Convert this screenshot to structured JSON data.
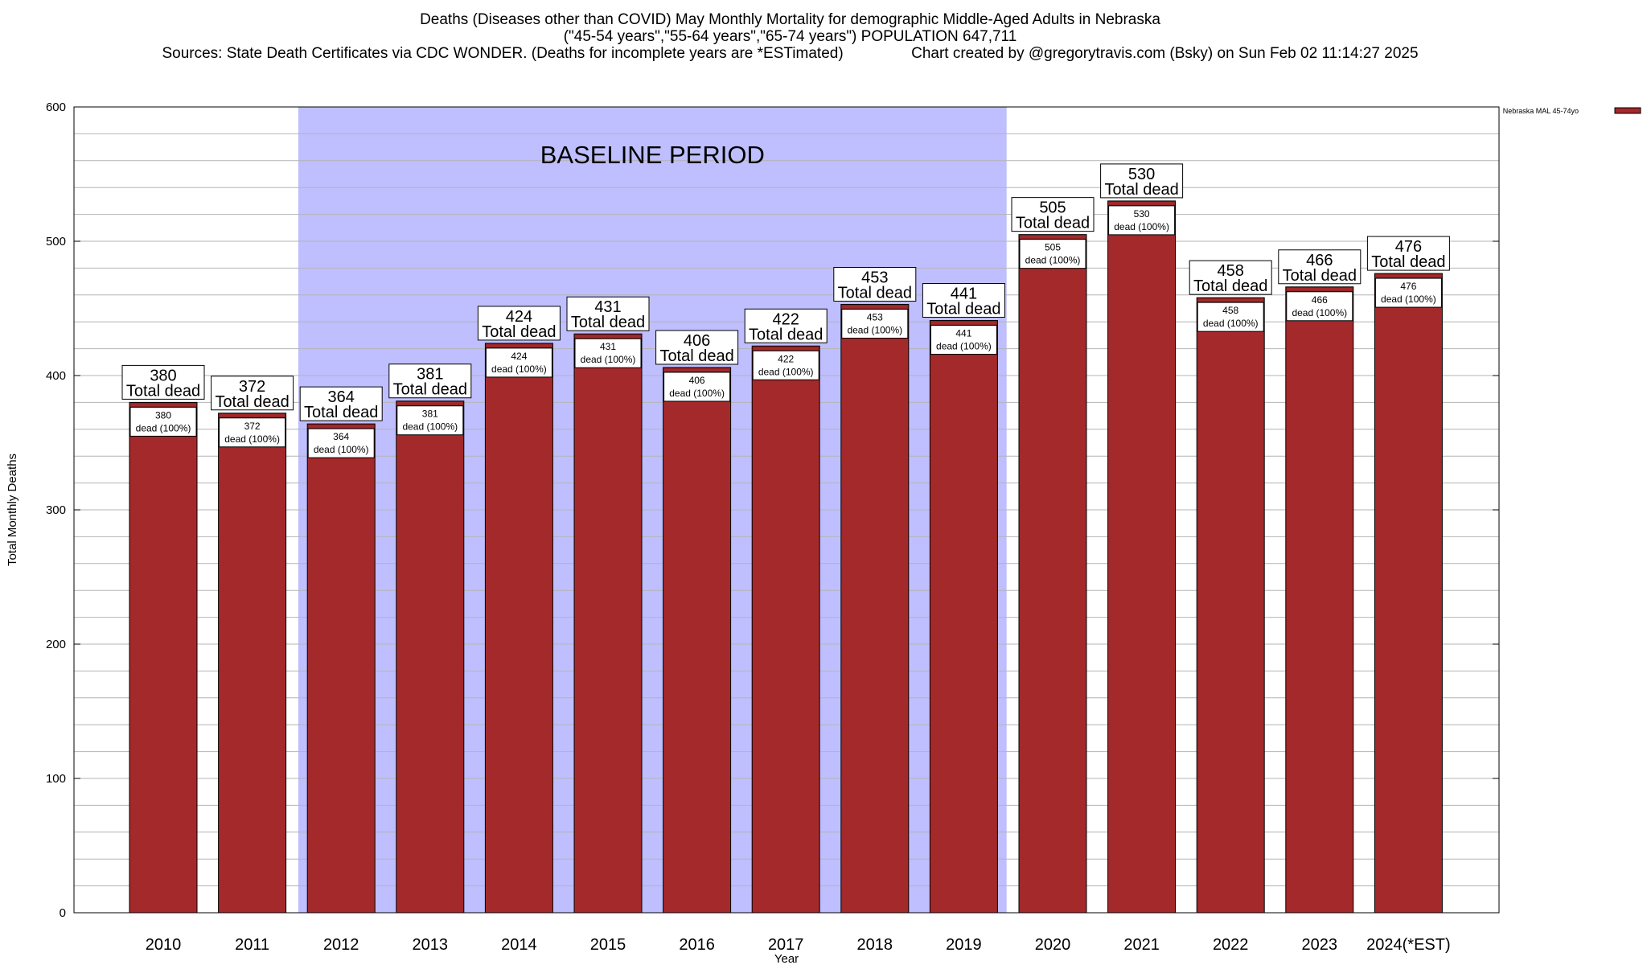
{
  "title_lines": [
    "Deaths (Diseases other than COVID) May Monthly Mortality for demographic Middle-Aged Adults in Nebraska",
    "(\"45-54 years\",\"55-64 years\",\"65-74 years\") POPULATION 647,711",
    "Sources: State Death Certificates via CDC WONDER. (Deaths for incomplete years are *ESTimated)                Chart created by @gregorytravis.com (Bsky) on Sun Feb 02 11:14:27 2025"
  ],
  "colors": {
    "bar": "#a3292b",
    "baseline_fill": "#bfbfff",
    "grid": "#b4b4b4"
  },
  "chart_data": {
    "type": "bar",
    "categories": [
      "2010",
      "2011",
      "2012",
      "2013",
      "2014",
      "2015",
      "2016",
      "2017",
      "2018",
      "2019",
      "2020",
      "2021",
      "2022",
      "2023",
      "2024(*EST)"
    ],
    "series": [
      {
        "name": "Nebraska MAL 45-74yo",
        "values": [
          380,
          372,
          364,
          381,
          424,
          431,
          406,
          422,
          453,
          441,
          505,
          530,
          458,
          466,
          476
        ]
      }
    ],
    "top_label_suffix": "Total dead",
    "inner_label_suffix": "dead (100%)",
    "baseline": {
      "label": "BASELINE PERIOD",
      "from": "2012",
      "to": "2019"
    },
    "xlabel": "Year",
    "ylabel": "Total Monthly Deaths",
    "ylim": [
      0,
      600
    ],
    "yticks": [
      0,
      100,
      200,
      300,
      400,
      500,
      600
    ],
    "grid": true,
    "legend_position": "top-right"
  }
}
